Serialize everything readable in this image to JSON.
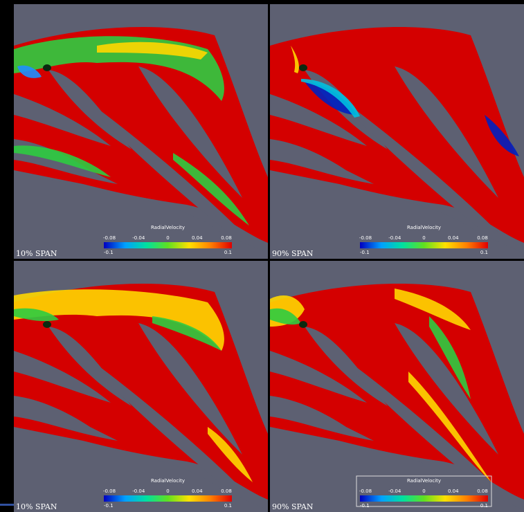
{
  "panels": [
    {
      "label": "10% SPAN",
      "colorbar": {
        "title": "RadialVelocity",
        "ticks": [
          "-0.08",
          "-0.04",
          "0",
          "0.04",
          "0.08"
        ],
        "min": "-0.1",
        "max": "0.1"
      }
    },
    {
      "label": "90% SPAN",
      "colorbar": {
        "title": "RadialVelocity",
        "ticks": [
          "-0.08",
          "-0.04",
          "0",
          "0.04",
          "0.08"
        ],
        "min": "-0.1",
        "max": "0.1"
      }
    },
    {
      "label": "10% SPAN",
      "colorbar": {
        "title": "RadialVelocity",
        "ticks": [
          "-0.08",
          "-0.04",
          "0",
          "0.04",
          "0.08"
        ],
        "min": "-0.1",
        "max": "0.1"
      }
    },
    {
      "label": "90% SPAN",
      "colorbar": {
        "title": "RadialVelocity",
        "ticks": [
          "-0.08",
          "-0.04",
          "0",
          "0.04",
          "0.08"
        ],
        "min": "-0.1",
        "max": "0.1"
      }
    }
  ]
}
